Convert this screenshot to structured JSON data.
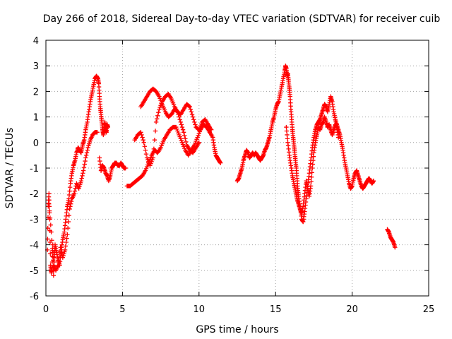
{
  "chart_data": {
    "type": "scatter",
    "title": "Day 266 of 2018, Sidereal Day-to-day VTEC variation (SDTVAR) for receiver cuib",
    "xlabel": "GPS time / hours",
    "ylabel": "SDTVAR / TECUs",
    "xlim": [
      0,
      25
    ],
    "ylim": [
      -6,
      4
    ],
    "xticks": [
      0,
      5,
      10,
      15,
      20,
      25
    ],
    "yticks": [
      -6,
      -5,
      -4,
      -3,
      -2,
      -1,
      0,
      1,
      2,
      3,
      4
    ],
    "grid": true,
    "marker": "plus",
    "color": "#ff0000",
    "series": [
      {
        "name": "seg1a",
        "points": [
          [
            0.1,
            -4.2
          ],
          [
            0.15,
            -2.5
          ],
          [
            0.2,
            -2.0
          ],
          [
            0.25,
            -3.0
          ],
          [
            0.3,
            -4.8
          ],
          [
            0.35,
            -5.1
          ],
          [
            0.4,
            -4.9
          ],
          [
            0.45,
            -4.0
          ],
          [
            0.5,
            -5.2
          ],
          [
            0.55,
            -4.5
          ],
          [
            0.6,
            -4.0
          ],
          [
            0.7,
            -4.3
          ],
          [
            0.8,
            -4.6
          ],
          [
            0.9,
            -4.8
          ],
          [
            1.0,
            -4.2
          ],
          [
            1.1,
            -3.8
          ],
          [
            1.2,
            -3.5
          ],
          [
            1.3,
            -3.0
          ],
          [
            1.4,
            -2.5
          ],
          [
            1.5,
            -2.2
          ],
          [
            1.6,
            -1.6
          ],
          [
            1.7,
            -1.2
          ],
          [
            1.8,
            -0.9
          ],
          [
            1.9,
            -0.7
          ],
          [
            2.0,
            -0.4
          ],
          [
            2.1,
            -0.2
          ],
          [
            2.2,
            -0.3
          ],
          [
            2.3,
            -0.4
          ],
          [
            2.4,
            -0.1
          ],
          [
            2.5,
            0.1
          ],
          [
            2.6,
            0.5
          ],
          [
            2.7,
            0.8
          ],
          [
            2.8,
            1.2
          ],
          [
            2.9,
            1.6
          ],
          [
            3.0,
            1.9
          ],
          [
            3.1,
            2.2
          ],
          [
            3.2,
            2.5
          ],
          [
            3.3,
            2.6
          ],
          [
            3.4,
            2.5
          ],
          [
            3.45,
            2.3
          ],
          [
            3.5,
            1.8
          ],
          [
            3.55,
            1.4
          ],
          [
            3.6,
            1.1
          ],
          [
            3.65,
            0.8
          ],
          [
            3.7,
            0.5
          ],
          [
            3.75,
            0.3
          ],
          [
            3.8,
            0.6
          ],
          [
            3.85,
            0.8
          ],
          [
            3.9,
            0.5
          ],
          [
            3.95,
            0.4
          ],
          [
            4.0,
            0.7
          ],
          [
            4.05,
            0.6
          ]
        ]
      },
      {
        "name": "seg1b",
        "points": [
          [
            0.2,
            -2.4
          ],
          [
            0.35,
            -3.5
          ],
          [
            0.5,
            -4.8
          ],
          [
            0.65,
            -5.0
          ],
          [
            0.8,
            -4.8
          ],
          [
            0.95,
            -4.1
          ],
          [
            1.1,
            -4.5
          ],
          [
            1.25,
            -4.2
          ],
          [
            1.4,
            -3.6
          ],
          [
            1.55,
            -2.6
          ],
          [
            1.7,
            -2.2
          ],
          [
            1.85,
            -2.0
          ],
          [
            2.0,
            -1.6
          ],
          [
            2.15,
            -1.8
          ],
          [
            2.3,
            -1.5
          ],
          [
            2.45,
            -1.1
          ],
          [
            2.6,
            -0.6
          ],
          [
            2.75,
            -0.2
          ],
          [
            2.9,
            0.1
          ],
          [
            3.05,
            0.3
          ],
          [
            3.2,
            0.4
          ],
          [
            3.35,
            0.4
          ]
        ]
      },
      {
        "name": "seg2",
        "points": [
          [
            3.5,
            -0.6
          ],
          [
            3.6,
            -1.1
          ],
          [
            3.7,
            -0.9
          ],
          [
            3.8,
            -1.0
          ],
          [
            3.9,
            -1.2
          ],
          [
            4.0,
            -1.3
          ],
          [
            4.1,
            -1.5
          ],
          [
            4.2,
            -1.3
          ],
          [
            4.3,
            -1.0
          ],
          [
            4.4,
            -0.9
          ],
          [
            4.5,
            -0.8
          ],
          [
            4.6,
            -0.8
          ],
          [
            4.7,
            -0.9
          ],
          [
            4.8,
            -0.9
          ],
          [
            4.9,
            -0.8
          ],
          [
            5.0,
            -0.9
          ],
          [
            5.1,
            -1.0
          ],
          [
            5.2,
            -1.0
          ]
        ]
      },
      {
        "name": "seg3a",
        "points": [
          [
            5.3,
            -1.7
          ],
          [
            5.5,
            -1.7
          ],
          [
            5.7,
            -1.6
          ],
          [
            5.9,
            -1.5
          ],
          [
            6.1,
            -1.4
          ],
          [
            6.3,
            -1.3
          ],
          [
            6.5,
            -1.1
          ],
          [
            6.7,
            -0.8
          ],
          [
            6.9,
            -0.5
          ],
          [
            7.1,
            -0.3
          ],
          [
            7.3,
            -0.4
          ],
          [
            7.5,
            -0.2
          ],
          [
            7.7,
            0.1
          ],
          [
            7.9,
            0.3
          ],
          [
            8.1,
            0.5
          ],
          [
            8.3,
            0.6
          ],
          [
            8.5,
            0.6
          ],
          [
            8.7,
            0.3
          ],
          [
            8.9,
            0.0
          ],
          [
            9.1,
            -0.3
          ],
          [
            9.3,
            -0.5
          ],
          [
            9.5,
            -0.3
          ],
          [
            9.7,
            -0.1
          ],
          [
            9.9,
            0.2
          ],
          [
            10.1,
            0.5
          ],
          [
            10.3,
            0.7
          ],
          [
            10.5,
            0.6
          ],
          [
            10.7,
            0.4
          ],
          [
            10.9,
            0.2
          ],
          [
            11.0,
            -0.2
          ],
          [
            11.1,
            -0.5
          ],
          [
            11.2,
            -0.6
          ],
          [
            11.3,
            -0.7
          ],
          [
            11.4,
            -0.8
          ]
        ]
      },
      {
        "name": "seg3b",
        "points": [
          [
            5.8,
            0.1
          ],
          [
            6.0,
            0.3
          ],
          [
            6.2,
            0.4
          ],
          [
            6.4,
            0.0
          ],
          [
            6.6,
            -0.6
          ],
          [
            6.8,
            -0.9
          ],
          [
            7.0,
            -0.6
          ],
          [
            7.2,
            0.8
          ],
          [
            7.4,
            1.3
          ],
          [
            7.6,
            1.6
          ],
          [
            7.8,
            1.8
          ],
          [
            8.0,
            1.9
          ],
          [
            8.2,
            1.7
          ],
          [
            8.4,
            1.4
          ],
          [
            8.6,
            1.2
          ],
          [
            8.8,
            1.1
          ],
          [
            9.0,
            1.3
          ],
          [
            9.2,
            1.5
          ],
          [
            9.4,
            1.4
          ],
          [
            9.6,
            1.0
          ],
          [
            9.8,
            0.6
          ],
          [
            10.0,
            0.5
          ],
          [
            10.2,
            0.8
          ],
          [
            10.4,
            0.9
          ],
          [
            10.6,
            0.7
          ],
          [
            10.8,
            0.5
          ]
        ]
      },
      {
        "name": "seg3c",
        "points": [
          [
            6.2,
            1.4
          ],
          [
            6.4,
            1.6
          ],
          [
            6.6,
            1.8
          ],
          [
            6.8,
            2.0
          ],
          [
            7.0,
            2.1
          ],
          [
            7.2,
            2.0
          ],
          [
            7.4,
            1.8
          ],
          [
            7.6,
            1.5
          ],
          [
            7.8,
            1.2
          ],
          [
            8.0,
            1.0
          ],
          [
            8.2,
            1.1
          ],
          [
            8.4,
            1.3
          ],
          [
            8.6,
            1.2
          ],
          [
            8.8,
            0.8
          ],
          [
            9.0,
            0.4
          ],
          [
            9.2,
            -0.1
          ],
          [
            9.4,
            -0.3
          ],
          [
            9.6,
            -0.4
          ],
          [
            9.8,
            -0.2
          ],
          [
            10.0,
            0.0
          ]
        ]
      },
      {
        "name": "seg4",
        "points": [
          [
            12.5,
            -1.5
          ],
          [
            12.6,
            -1.4
          ],
          [
            12.7,
            -1.2
          ],
          [
            12.8,
            -1.0
          ],
          [
            12.9,
            -0.7
          ],
          [
            13.0,
            -0.5
          ],
          [
            13.1,
            -0.3
          ],
          [
            13.2,
            -0.4
          ],
          [
            13.3,
            -0.6
          ],
          [
            13.4,
            -0.5
          ],
          [
            13.5,
            -0.4
          ],
          [
            13.6,
            -0.5
          ],
          [
            13.7,
            -0.4
          ],
          [
            13.8,
            -0.5
          ],
          [
            13.9,
            -0.6
          ],
          [
            14.0,
            -0.7
          ],
          [
            14.1,
            -0.6
          ],
          [
            14.2,
            -0.5
          ],
          [
            14.3,
            -0.3
          ],
          [
            14.4,
            -0.2
          ],
          [
            14.5,
            0.0
          ],
          [
            14.6,
            0.2
          ],
          [
            14.7,
            0.5
          ],
          [
            14.8,
            0.8
          ],
          [
            14.9,
            1.0
          ],
          [
            15.0,
            1.3
          ],
          [
            15.1,
            1.5
          ],
          [
            15.2,
            1.6
          ],
          [
            15.3,
            1.9
          ],
          [
            15.4,
            2.2
          ],
          [
            15.5,
            2.5
          ],
          [
            15.6,
            2.8
          ],
          [
            15.65,
            3.0
          ],
          [
            15.7,
            2.9
          ],
          [
            15.75,
            2.6
          ],
          [
            15.8,
            2.7
          ],
          [
            15.85,
            2.4
          ],
          [
            15.9,
            2.1
          ],
          [
            15.95,
            1.8
          ],
          [
            16.0,
            1.3
          ],
          [
            16.05,
            0.9
          ],
          [
            16.1,
            0.5
          ],
          [
            16.15,
            0.2
          ],
          [
            16.2,
            -0.1
          ],
          [
            16.25,
            -0.4
          ],
          [
            16.3,
            -0.7
          ],
          [
            16.35,
            -1.0
          ],
          [
            16.4,
            -1.4
          ],
          [
            16.45,
            -1.8
          ],
          [
            16.5,
            -2.1
          ],
          [
            16.6,
            -2.5
          ],
          [
            16.7,
            -3.0
          ],
          [
            16.8,
            -3.1
          ],
          [
            16.9,
            -2.7
          ],
          [
            17.0,
            -2.2
          ],
          [
            17.1,
            -1.7
          ],
          [
            17.2,
            -1.2
          ],
          [
            17.3,
            -0.7
          ],
          [
            17.4,
            -0.2
          ],
          [
            17.5,
            0.2
          ],
          [
            17.6,
            0.5
          ],
          [
            17.7,
            0.7
          ],
          [
            17.8,
            0.8
          ],
          [
            17.9,
            0.9
          ],
          [
            18.0,
            1.1
          ],
          [
            18.1,
            1.3
          ],
          [
            18.2,
            1.5
          ],
          [
            18.3,
            1.4
          ],
          [
            18.4,
            1.2
          ],
          [
            18.5,
            1.5
          ],
          [
            18.6,
            1.8
          ],
          [
            18.7,
            1.6
          ],
          [
            18.8,
            1.2
          ],
          [
            18.9,
            0.9
          ],
          [
            19.0,
            0.7
          ],
          [
            19.1,
            0.5
          ],
          [
            19.2,
            0.3
          ],
          [
            19.3,
            0.0
          ],
          [
            19.4,
            -0.3
          ],
          [
            19.5,
            -0.7
          ],
          [
            19.6,
            -1.0
          ],
          [
            19.7,
            -1.3
          ],
          [
            19.8,
            -1.6
          ],
          [
            19.9,
            -1.8
          ],
          [
            20.0,
            -1.7
          ],
          [
            20.1,
            -1.4
          ],
          [
            20.2,
            -1.2
          ],
          [
            20.3,
            -1.1
          ],
          [
            20.4,
            -1.3
          ],
          [
            20.5,
            -1.5
          ],
          [
            20.6,
            -1.7
          ],
          [
            20.7,
            -1.8
          ],
          [
            20.8,
            -1.7
          ],
          [
            20.9,
            -1.6
          ],
          [
            21.0,
            -1.5
          ],
          [
            21.1,
            -1.4
          ],
          [
            21.2,
            -1.5
          ],
          [
            21.3,
            -1.6
          ],
          [
            21.4,
            -1.5
          ]
        ]
      },
      {
        "name": "seg4b",
        "points": [
          [
            15.7,
            0.6
          ],
          [
            15.8,
            0.0
          ],
          [
            15.9,
            -0.5
          ],
          [
            16.0,
            -0.9
          ],
          [
            16.1,
            -1.3
          ],
          [
            16.2,
            -1.6
          ],
          [
            16.3,
            -1.9
          ],
          [
            16.4,
            -2.2
          ],
          [
            16.5,
            -2.4
          ],
          [
            16.6,
            -2.6
          ],
          [
            16.7,
            -2.8
          ],
          [
            16.8,
            -2.5
          ],
          [
            16.9,
            -2.0
          ],
          [
            17.0,
            -1.5
          ],
          [
            17.1,
            -1.8
          ],
          [
            17.2,
            -2.1
          ],
          [
            17.3,
            -1.7
          ],
          [
            17.4,
            -1.0
          ],
          [
            17.5,
            -0.4
          ],
          [
            17.6,
            0.0
          ],
          [
            17.7,
            0.3
          ],
          [
            17.8,
            0.6
          ],
          [
            17.9,
            0.5
          ],
          [
            18.0,
            0.7
          ],
          [
            18.1,
            0.8
          ],
          [
            18.2,
            1.0
          ],
          [
            18.3,
            0.8
          ],
          [
            18.4,
            0.6
          ],
          [
            18.5,
            0.7
          ],
          [
            18.6,
            0.5
          ],
          [
            18.7,
            0.3
          ],
          [
            18.8,
            0.5
          ],
          [
            18.9,
            0.7
          ],
          [
            19.0,
            0.6
          ],
          [
            19.1,
            0.2
          ]
        ]
      },
      {
        "name": "seg5",
        "points": [
          [
            22.3,
            -3.4
          ],
          [
            22.4,
            -3.5
          ],
          [
            22.5,
            -3.7
          ],
          [
            22.6,
            -3.8
          ],
          [
            22.7,
            -3.9
          ],
          [
            22.8,
            -4.1
          ]
        ]
      }
    ]
  }
}
